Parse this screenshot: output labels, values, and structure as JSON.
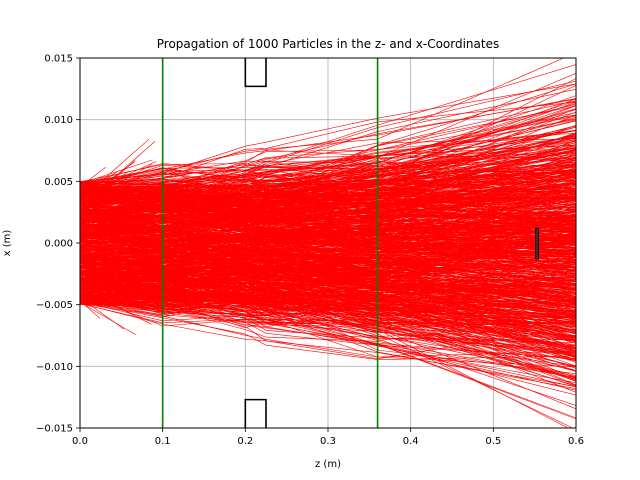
{
  "chart_data": {
    "type": "line",
    "title": "Propagation of 1000 Particles in the z- and x-Coordinates",
    "xlabel": "z (m)",
    "ylabel": "x (m)",
    "xlim": [
      0.0,
      0.6
    ],
    "ylim": [
      -0.015,
      0.015
    ],
    "xticks": [
      0.0,
      0.1,
      0.2,
      0.3,
      0.4,
      0.5,
      0.6
    ],
    "xtick_labels": [
      "0.0",
      "0.1",
      "0.2",
      "0.3",
      "0.4",
      "0.5",
      "0.6"
    ],
    "yticks": [
      -0.015,
      -0.01,
      -0.005,
      0.0,
      0.005,
      0.01,
      0.015
    ],
    "ytick_labels": [
      "−0.015",
      "−0.010",
      "−0.005",
      "0.000",
      "0.005",
      "0.010",
      "0.015"
    ],
    "grid": true,
    "series_color": "#ff0000",
    "particle_count": 1000,
    "aperture_planes": [
      {
        "z": 0.1,
        "color": "#008000"
      },
      {
        "z": 0.36,
        "color": "#008000"
      }
    ],
    "elements": [
      {
        "kind": "box",
        "z_start": 0.2,
        "z_end": 0.225,
        "x_from": 0.015,
        "x_to": 0.0127,
        "color": "#000000"
      },
      {
        "kind": "box",
        "z_start": 0.2,
        "z_end": 0.225,
        "x_from": -0.015,
        "x_to": -0.0127,
        "color": "#000000"
      },
      {
        "kind": "detector",
        "z": 0.553,
        "x_min": -0.0013,
        "x_max": 0.0012,
        "color": "#000000"
      }
    ],
    "beam": {
      "initial_x_range": [
        -0.005,
        0.005
      ],
      "z_nodes": [
        0.0,
        0.1,
        0.2,
        0.225,
        0.36,
        0.6
      ]
    }
  }
}
